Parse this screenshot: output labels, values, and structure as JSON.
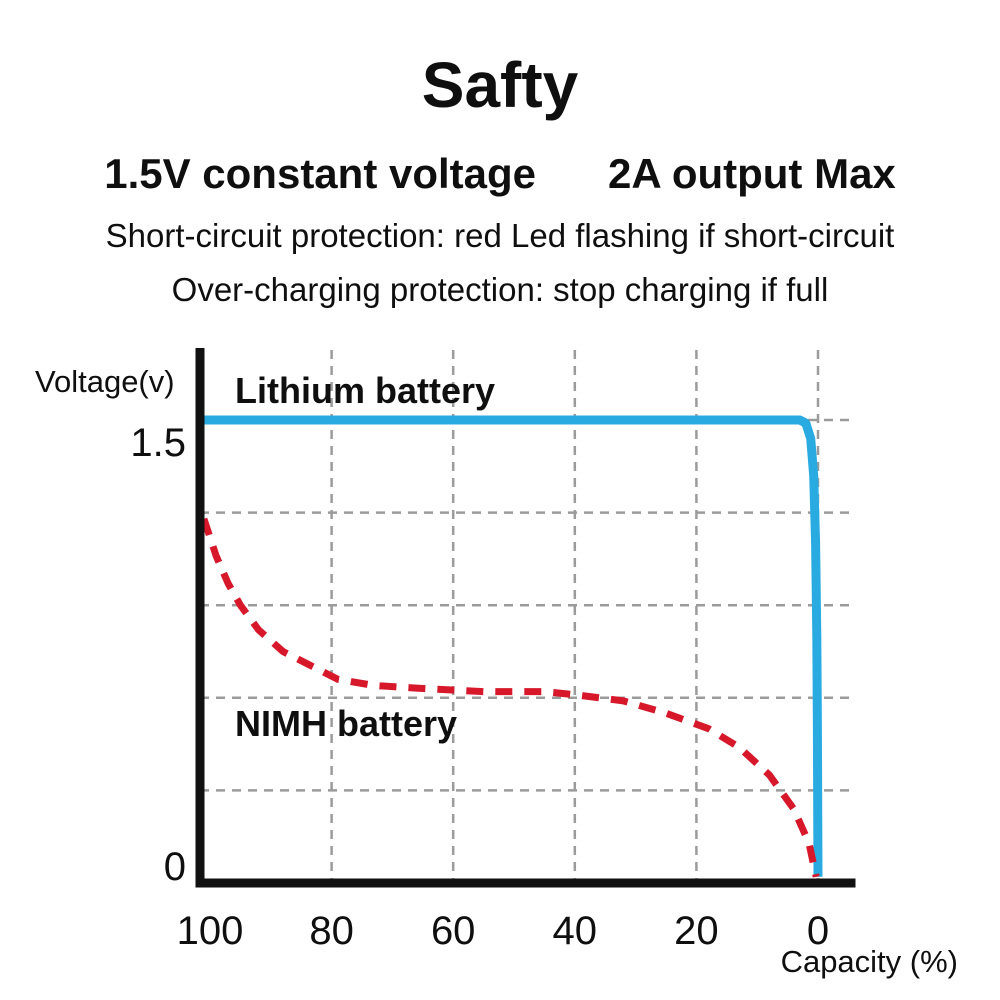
{
  "header": {
    "title": "Safty",
    "subtitle_left": "1.5V constant voltage",
    "subtitle_right": "2A output Max",
    "line1": "Short-circuit protection: red Led flashing if short-circuit",
    "line2": "Over-charging protection: stop charging if full"
  },
  "chart_data": {
    "type": "line",
    "title": "",
    "xlabel": "Capacity (%)",
    "ylabel": "Voltage(v)",
    "x_axis_reversed": true,
    "x_ticks": [
      100,
      80,
      60,
      40,
      20,
      0
    ],
    "y_tick_labels": [
      {
        "value": 1.5,
        "label": "1.5"
      },
      {
        "value": 0,
        "label": "0"
      }
    ],
    "ylim": [
      0,
      1.75
    ],
    "xlim": [
      101.5,
      -6
    ],
    "grid": {
      "show": true,
      "style": "dashed",
      "color": "#9b9b9b",
      "y_values": [
        1.5,
        1.2,
        0.9,
        0.6,
        0.3
      ],
      "x_values": [
        80,
        60,
        40,
        20,
        0
      ]
    },
    "axis_color": "#111111",
    "series": [
      {
        "name": "Lithium battery",
        "color": "#29abe2",
        "line_style": "solid",
        "points": [
          [
            101,
            1.5
          ],
          [
            80,
            1.5
          ],
          [
            60,
            1.5
          ],
          [
            40,
            1.5
          ],
          [
            20,
            1.5
          ],
          [
            10,
            1.5
          ],
          [
            6,
            1.5
          ],
          [
            3,
            1.5
          ],
          [
            2,
            1.49
          ],
          [
            1.2,
            1.44
          ],
          [
            0.7,
            1.32
          ],
          [
            0.4,
            1.1
          ],
          [
            0.2,
            0.8
          ],
          [
            0.1,
            0.5
          ],
          [
            0.05,
            0.25
          ],
          [
            0,
            0.02
          ]
        ]
      },
      {
        "name": "NIMH battery",
        "color": "#d7182a",
        "line_style": "dashed",
        "points": [
          [
            101,
            1.18
          ],
          [
            99,
            1.06
          ],
          [
            97,
            0.97
          ],
          [
            95,
            0.9
          ],
          [
            92,
            0.82
          ],
          [
            88,
            0.75
          ],
          [
            83,
            0.7
          ],
          [
            79,
            0.66
          ],
          [
            73,
            0.64
          ],
          [
            65,
            0.63
          ],
          [
            55,
            0.62
          ],
          [
            45,
            0.62
          ],
          [
            40,
            0.61
          ],
          [
            32,
            0.59
          ],
          [
            25,
            0.55
          ],
          [
            18,
            0.5
          ],
          [
            13,
            0.44
          ],
          [
            8,
            0.35
          ],
          [
            4,
            0.24
          ],
          [
            1.5,
            0.13
          ],
          [
            0.3,
            0.02
          ]
        ]
      }
    ]
  }
}
